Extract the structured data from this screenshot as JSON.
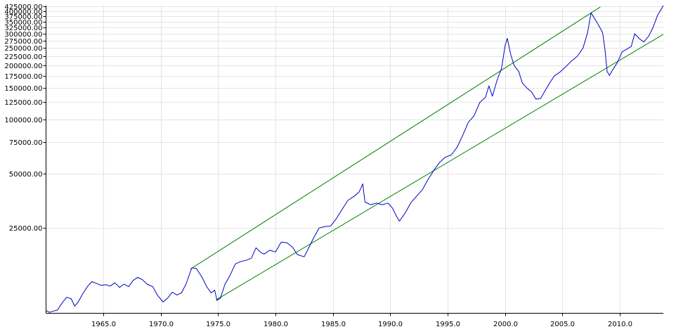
{
  "chart_data": {
    "type": "line",
    "title": "",
    "xlabel": "",
    "ylabel": "",
    "y_scale": "log",
    "xlim": [
      1960.0,
      2013.8
    ],
    "ylim": [
      8400,
      430000
    ],
    "grid": true,
    "legend": "none",
    "x_tick_labels": [
      "1965.0",
      "1970.0",
      "1975.0",
      "1980.0",
      "1985.0",
      "1990.0",
      "1995.0",
      "2000.0",
      "2005.0",
      "2010.0"
    ],
    "y_tick_labels": [
      "425000.00",
      "400000.00",
      "375000.00",
      "350000.00",
      "325000.00",
      "300000.00",
      "275000.00",
      "250000.00",
      "225000.00",
      "200000.00",
      "175000.00",
      "150000.00",
      "125000.00",
      "100000.00",
      "75000.00",
      "50000.00",
      "25000.00"
    ],
    "colors": {
      "series": "#0000c8",
      "channel": "#008000",
      "grid": "#e4e4e4",
      "axis": "#000000"
    },
    "series": [
      {
        "values": [
          [
            1960.0,
            8700
          ],
          [
            1960.3,
            8500
          ],
          [
            1960.7,
            8650
          ],
          [
            1961.0,
            8750
          ],
          [
            1961.4,
            9600
          ],
          [
            1961.8,
            10300
          ],
          [
            1962.2,
            10100
          ],
          [
            1962.5,
            9200
          ],
          [
            1962.8,
            9700
          ],
          [
            1963.2,
            10800
          ],
          [
            1963.6,
            11800
          ],
          [
            1964.0,
            12600
          ],
          [
            1964.4,
            12300
          ],
          [
            1964.8,
            12000
          ],
          [
            1965.2,
            12100
          ],
          [
            1965.6,
            11900
          ],
          [
            1966.0,
            12400
          ],
          [
            1966.4,
            11700
          ],
          [
            1966.8,
            12200
          ],
          [
            1967.2,
            11800
          ],
          [
            1967.6,
            12800
          ],
          [
            1968.0,
            13300
          ],
          [
            1968.4,
            12900
          ],
          [
            1968.8,
            12200
          ],
          [
            1969.3,
            11800
          ],
          [
            1969.7,
            10600
          ],
          [
            1970.2,
            9700
          ],
          [
            1970.6,
            10200
          ],
          [
            1971.0,
            11000
          ],
          [
            1971.4,
            10600
          ],
          [
            1971.8,
            10900
          ],
          [
            1972.2,
            12200
          ],
          [
            1972.7,
            15000
          ],
          [
            1973.1,
            14900
          ],
          [
            1973.6,
            13300
          ],
          [
            1974.0,
            11800
          ],
          [
            1974.4,
            10900
          ],
          [
            1974.7,
            11300
          ],
          [
            1974.9,
            9900
          ],
          [
            1975.2,
            10200
          ],
          [
            1975.6,
            12200
          ],
          [
            1976.0,
            13500
          ],
          [
            1976.5,
            15800
          ],
          [
            1977.0,
            16300
          ],
          [
            1977.5,
            16600
          ],
          [
            1977.9,
            17000
          ],
          [
            1978.3,
            19400
          ],
          [
            1978.7,
            18300
          ],
          [
            1979.0,
            17900
          ],
          [
            1979.5,
            18800
          ],
          [
            1980.0,
            18400
          ],
          [
            1980.5,
            20900
          ],
          [
            1981.0,
            20700
          ],
          [
            1981.5,
            19500
          ],
          [
            1981.9,
            17800
          ],
          [
            1982.5,
            17300
          ],
          [
            1982.9,
            19400
          ],
          [
            1983.3,
            21900
          ],
          [
            1983.8,
            25000
          ],
          [
            1984.3,
            25500
          ],
          [
            1984.8,
            25600
          ],
          [
            1985.3,
            28200
          ],
          [
            1985.8,
            31700
          ],
          [
            1986.3,
            35600
          ],
          [
            1986.9,
            37700
          ],
          [
            1987.3,
            39800
          ],
          [
            1987.6,
            44000
          ],
          [
            1987.8,
            34800
          ],
          [
            1988.3,
            33700
          ],
          [
            1988.8,
            34400
          ],
          [
            1989.3,
            33700
          ],
          [
            1989.8,
            34400
          ],
          [
            1990.2,
            32200
          ],
          [
            1990.5,
            29400
          ],
          [
            1990.8,
            27300
          ],
          [
            1991.3,
            30300
          ],
          [
            1991.8,
            34600
          ],
          [
            1992.3,
            37600
          ],
          [
            1992.8,
            40800
          ],
          [
            1993.3,
            46600
          ],
          [
            1993.8,
            52300
          ],
          [
            1994.3,
            57900
          ],
          [
            1994.8,
            61800
          ],
          [
            1995.3,
            63600
          ],
          [
            1995.8,
            69800
          ],
          [
            1996.3,
            81300
          ],
          [
            1996.8,
            96700
          ],
          [
            1997.3,
            105000
          ],
          [
            1997.8,
            124500
          ],
          [
            1998.3,
            133000
          ],
          [
            1998.6,
            154000
          ],
          [
            1998.9,
            135000
          ],
          [
            1999.3,
            165000
          ],
          [
            1999.7,
            193000
          ],
          [
            2000.0,
            257000
          ],
          [
            2000.2,
            283000
          ],
          [
            2000.5,
            230000
          ],
          [
            2000.8,
            200000
          ],
          [
            2001.2,
            185000
          ],
          [
            2001.5,
            160000
          ],
          [
            2001.9,
            150000
          ],
          [
            2002.3,
            143000
          ],
          [
            2002.7,
            130000
          ],
          [
            2003.1,
            131000
          ],
          [
            2003.5,
            145000
          ],
          [
            2003.9,
            160000
          ],
          [
            2004.3,
            175000
          ],
          [
            2004.8,
            184000
          ],
          [
            2005.3,
            197000
          ],
          [
            2005.8,
            212000
          ],
          [
            2006.3,
            225000
          ],
          [
            2006.8,
            250000
          ],
          [
            2007.2,
            305000
          ],
          [
            2007.5,
            392000
          ],
          [
            2007.8,
            365000
          ],
          [
            2008.1,
            340000
          ],
          [
            2008.5,
            305000
          ],
          [
            2008.7,
            250000
          ],
          [
            2008.9,
            185000
          ],
          [
            2009.1,
            176000
          ],
          [
            2009.4,
            190000
          ],
          [
            2009.8,
            208000
          ],
          [
            2010.2,
            238000
          ],
          [
            2010.6,
            246000
          ],
          [
            2011.0,
            255000
          ],
          [
            2011.3,
            300000
          ],
          [
            2011.7,
            282000
          ],
          [
            2012.1,
            270000
          ],
          [
            2012.5,
            290000
          ],
          [
            2012.9,
            325000
          ],
          [
            2013.3,
            380000
          ],
          [
            2013.8,
            430000
          ]
        ]
      }
    ],
    "channel_lines": [
      {
        "from": [
          1972.6,
          14800
        ],
        "to": [
          2008.3,
          422000
        ]
      },
      {
        "from": [
          1974.8,
          9950
        ],
        "to": [
          2013.8,
          298000
        ]
      }
    ]
  }
}
